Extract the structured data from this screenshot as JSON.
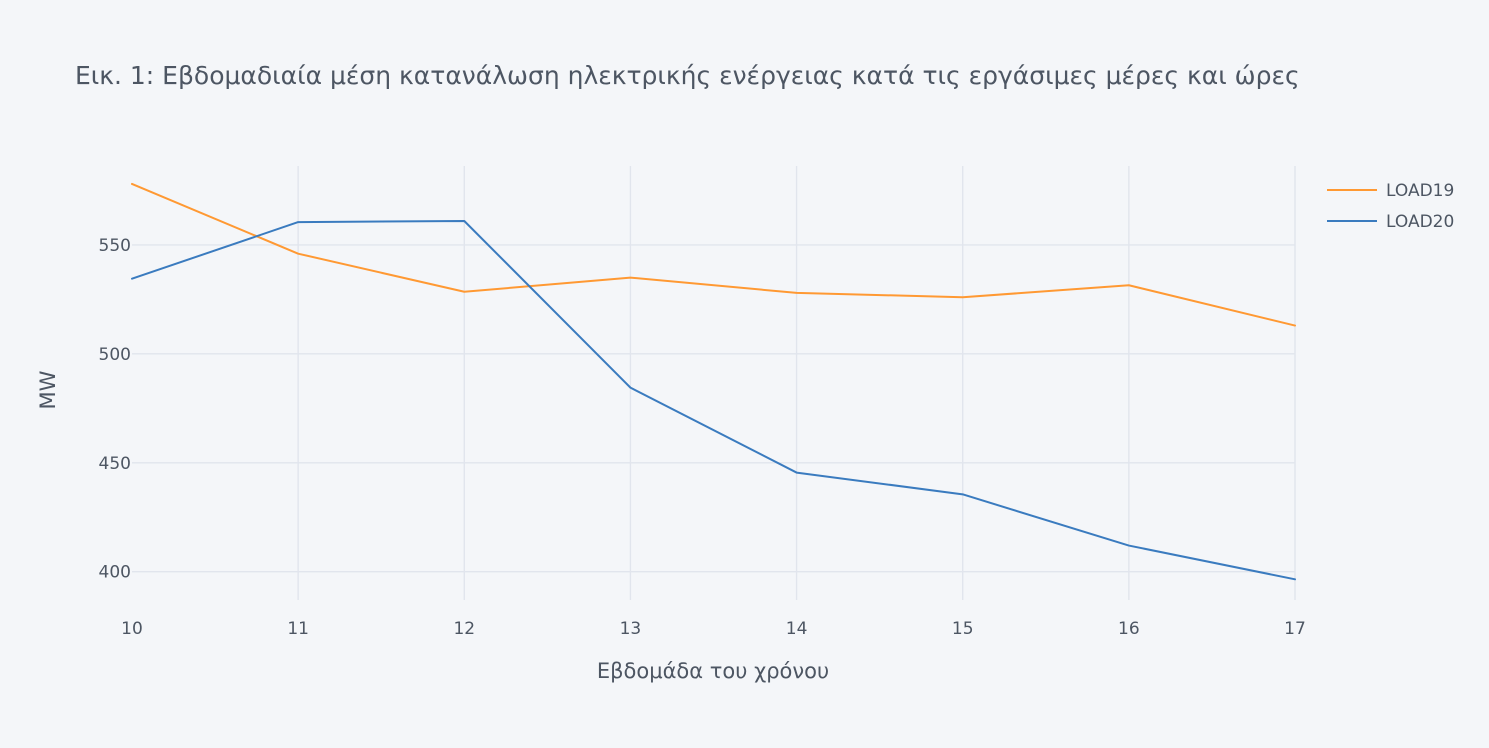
{
  "chart_data": {
    "type": "line",
    "title": "Εικ. 1: Εβδομαδιαία μέση κατανάλωση ηλεκτρικής ενέργειας κατά τις εργάσιμες μέρες και ώρες",
    "xlabel": "Εβδομάδα του χρόνου",
    "ylabel": "MW",
    "x": [
      10,
      11,
      12,
      13,
      14,
      15,
      16,
      17
    ],
    "xlim": [
      10,
      17
    ],
    "ylim": [
      387,
      589
    ],
    "xticks": [
      10,
      11,
      12,
      13,
      14,
      15,
      16,
      17
    ],
    "yticks": [
      400,
      450,
      500,
      550
    ],
    "grid": true,
    "legend_position": "top-right",
    "series": [
      {
        "name": "LOAD19",
        "color": "#ff9933",
        "values": [
          578,
          546,
          528.5,
          535,
          528,
          526,
          531.5,
          513
        ]
      },
      {
        "name": "LOAD20",
        "color": "#3a7bbf",
        "values": [
          534.5,
          560.5,
          561,
          484.5,
          445.5,
          435.5,
          412,
          396.5
        ]
      }
    ]
  }
}
